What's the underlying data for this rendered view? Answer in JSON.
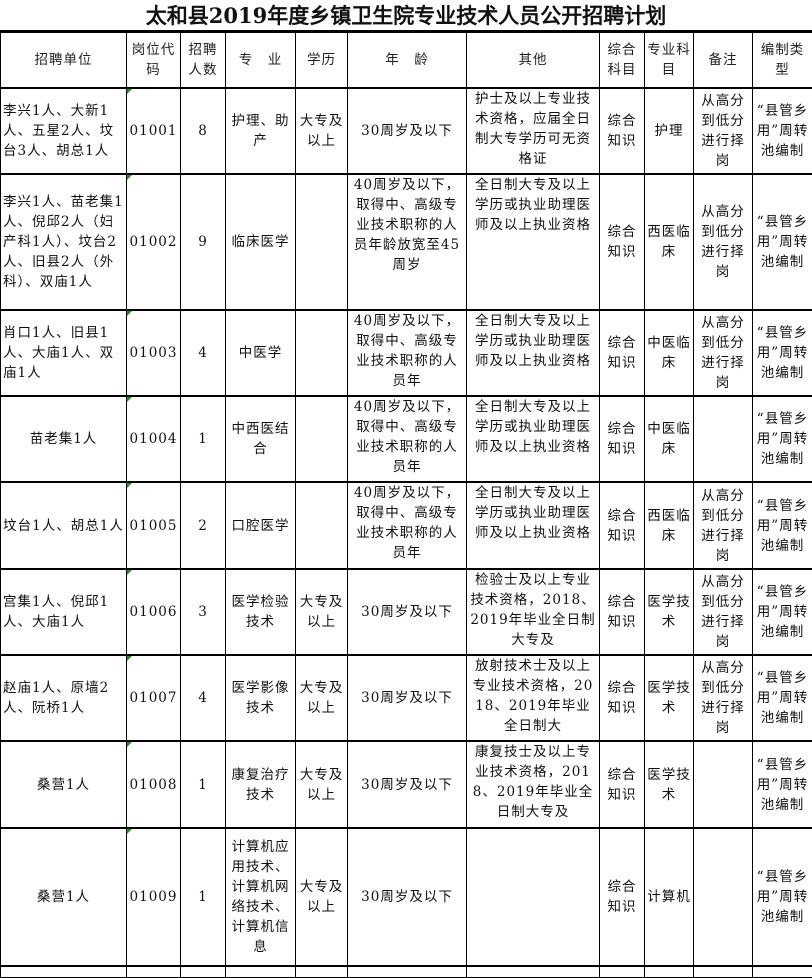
{
  "title": "太和县2019年度乡镇卫生院专业技术人员公开招聘计划",
  "headers": [
    "招聘单位",
    "岗位代码",
    "招聘人数",
    "专　业",
    "学历",
    "年　龄",
    "其他",
    "综合科目",
    "专业科目",
    "备注",
    "编制类型"
  ],
  "rows": [
    [
      "李兴1人、大新1人、五星2人、坟台3人、胡总1人",
      "01001",
      "8",
      "护理、助产",
      "大专及以上",
      "30周岁及以下",
      "护士及以上专业技术资格，应届全日制大专学历可无资格证",
      "综合知识",
      "护理",
      "从高分到低分进行择岗",
      "“县管乡用”周转池编制"
    ],
    [
      "李兴1人、苗老集1人、倪邱2人（妇产科1人）、坟台2人、旧县2人（外科）、双庙1人",
      "01002",
      "9",
      "临床医学",
      "",
      "40周岁及以下，取得中、高级专业技术职称的人员年龄放宽至45周岁",
      "全日制大专及以上学历或执业助理医师及以上执业资格",
      "综合知识",
      "西医临床",
      "从高分到低分进行择岗",
      "“县管乡用”周转池编制"
    ],
    [
      "肖口1人、旧县1人、大庙1人、双庙1人",
      "01003",
      "4",
      "中医学",
      "",
      "40周岁及以下，取得中、高级专业技术职称的人员年",
      "全日制大专及以上学历或执业助理医师及以上执业资格",
      "综合知识",
      "中医临床",
      "从高分到低分进行择岗",
      "“县管乡用”周转池编制"
    ],
    [
      "苗老集1人",
      "01004",
      "1",
      "中西医结合",
      "",
      "40周岁及以下，取得中、高级专业技术职称的人员年",
      "全日制大专及以上学历或执业助理医师及以上执业资格",
      "综合知识",
      "中医临床",
      "",
      "“县管乡用”周转池编制"
    ],
    [
      "坟台1人、胡总1人",
      "01005",
      "2",
      "口腔医学",
      "",
      "40周岁及以下，取得中、高级专业技术职称的人员年",
      "全日制大专及以上学历或执业助理医师及以上执业资格",
      "综合知识",
      "西医临床",
      "从高分到低分进行择岗",
      "“县管乡用”周转池编制"
    ],
    [
      "宫集1人、倪邱1人、大庙1人",
      "01006",
      "3",
      "医学检验技术",
      "大专及以上",
      "30周岁及以下",
      "检验士及以上专业技术资格，2018、2019年毕业全日制大专及",
      "综合知识",
      "医学技术",
      "从高分到低分进行择岗",
      "“县管乡用”周转池编制"
    ],
    [
      "赵庙1人、原墙2人、阮桥1人",
      "01007",
      "4",
      "医学影像技术",
      "大专及以上",
      "30周岁及以下",
      "放射技术士及以上专业技术资格，2018、2019年毕业全日制大",
      "综合知识",
      "医学技术",
      "从高分到低分进行择岗",
      "“县管乡用”周转池编制"
    ],
    [
      "桑营1人",
      "01008",
      "1",
      "康复治疗技术",
      "大专及以上",
      "30周岁及以下",
      "康复技士及以上专业技术资格，2018、2019年毕业全日制大专及",
      "综合知识",
      "医学技术",
      "",
      "“县管乡用”周转池编制"
    ],
    [
      "桑营1人",
      "01009",
      "1",
      "计算机应用技术、计算机网络技术、计算机信息",
      "大专及以上",
      "30周岁及以下",
      "",
      "综合知识",
      "计算机",
      "",
      "“县管乡用”周转池编制"
    ]
  ]
}
